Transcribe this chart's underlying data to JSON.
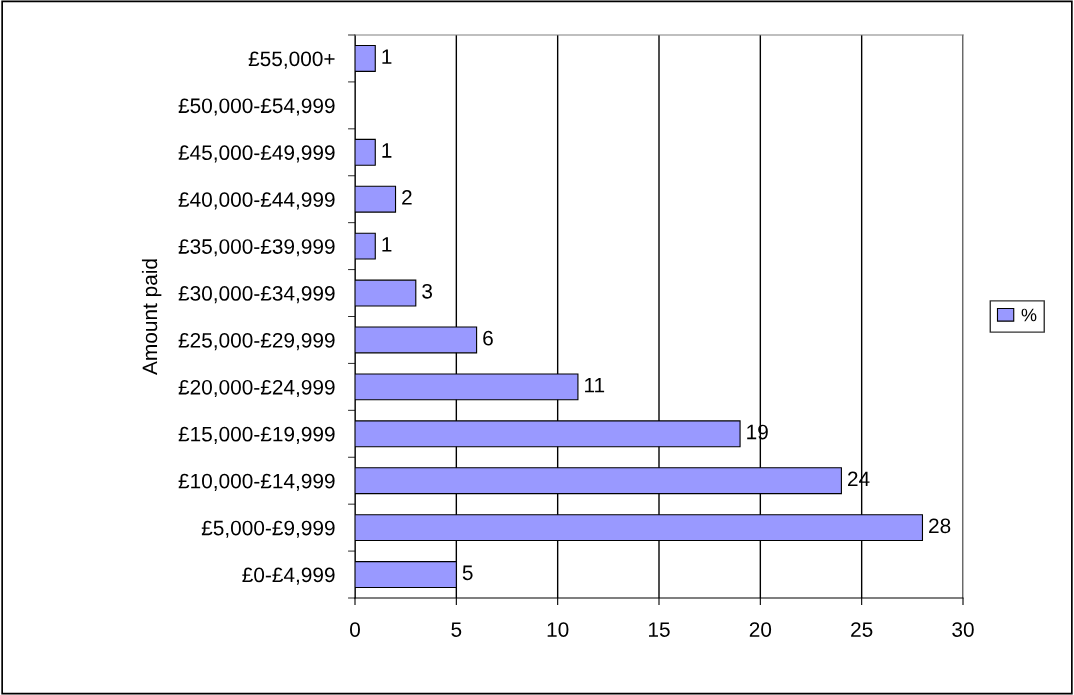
{
  "chart_data": {
    "type": "bar",
    "orientation": "horizontal",
    "ylabel": "Amount paid",
    "categories": [
      "£55,000+",
      "£50,000-£54,999",
      "£45,000-£49,999",
      "£40,000-£44,999",
      "£35,000-£39,999",
      "£30,000-£34,999",
      "£25,000-£29,999",
      "£20,000-£24,999",
      "£15,000-£19,999",
      "£10,000-£14,999",
      "£5,000-£9,999",
      "£0-£4,999"
    ],
    "series": [
      {
        "name": "%",
        "color": "#9999ff",
        "values": [
          1,
          null,
          1,
          2,
          1,
          3,
          6,
          11,
          19,
          24,
          28,
          5
        ]
      }
    ],
    "xlim": [
      0,
      30
    ],
    "xticks": [
      0,
      5,
      10,
      15,
      20,
      25,
      30
    ],
    "grid": "x",
    "legend": "right",
    "data_labels": true
  }
}
